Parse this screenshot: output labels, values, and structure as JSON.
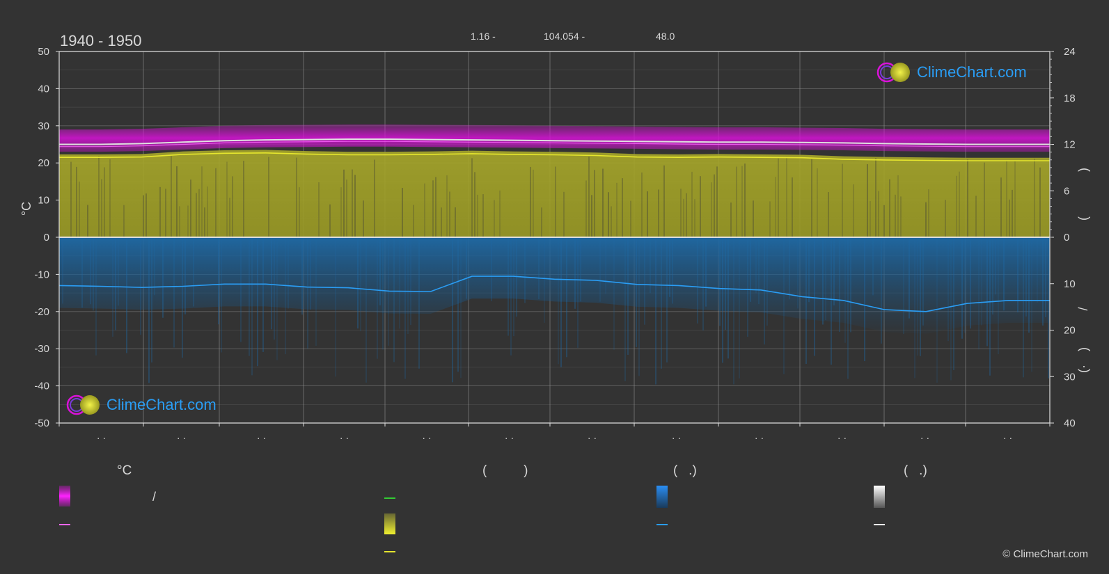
{
  "title": "1940 - 1950",
  "coords": {
    "lat": "1.16 -",
    "lon": "104.054 -",
    "elev": "48.0"
  },
  "brand": {
    "logo_text": "ClimeChart.com",
    "copyright": "© ClimeChart.com"
  },
  "legend": {
    "headers": [
      "°C",
      "(          )",
      "(   .)",
      "(   .)"
    ],
    "slash": "/"
  },
  "colors": {
    "background": "#333333",
    "temp_band": "#d912d9",
    "temp_mean": "#ff66ff",
    "sunshine_band": "#a8a82a",
    "sunshine_mean": "#e6e62e",
    "precip_band": "#1f6aa6",
    "precip_mean": "#2a9df4",
    "daylight_mean": "#dddddd",
    "green_line": "#33cc33",
    "logo_text": "#2a9df4"
  },
  "chart_data": {
    "type": "area",
    "title": "1940 - 1950",
    "ylabel": "°C",
    "ylim": [
      -50,
      50
    ],
    "yticks": [
      50,
      40,
      30,
      20,
      10,
      0,
      -10,
      -20,
      -30,
      -40,
      -50
    ],
    "y2_top_ticks": [
      24,
      18,
      12,
      6,
      0
    ],
    "y2_bottom_ticks": [
      10,
      20,
      30,
      40
    ],
    "x_tick_labels": [
      "· ·",
      "· ·",
      "· ·",
      "· ·",
      "· ·",
      "· ·",
      "· ·",
      "· ·",
      "· ·",
      "· ·",
      "· ·",
      "· ·"
    ],
    "right_axis_glyphs": [
      ")",
      "(",
      "/",
      ")",
      "(·"
    ],
    "grid": true,
    "x": [
      0.0,
      0.5,
      1.0,
      1.5,
      2.0,
      2.5,
      3.0,
      3.5,
      4.0,
      4.5,
      5.0,
      5.5,
      6.0,
      6.5,
      7.0,
      7.5,
      8.0,
      8.5,
      9.0,
      9.5,
      10.0,
      10.5,
      11.0,
      11.5,
      12.0
    ],
    "series": [
      {
        "values": [
          25.0,
          25.0,
          25.2,
          25.6,
          26.0,
          26.2,
          26.3,
          26.4,
          26.4,
          26.3,
          26.2,
          26.1,
          26.0,
          25.9,
          25.8,
          25.7,
          25.6,
          25.6,
          25.5,
          25.4,
          25.2,
          25.1,
          25.0,
          25.0,
          25.0
        ]
      },
      {
        "values": [
          21.5,
          21.5,
          21.6,
          22.3,
          22.6,
          22.7,
          22.4,
          22.2,
          22.2,
          22.3,
          22.5,
          22.3,
          22.2,
          22.0,
          21.6,
          21.5,
          21.6,
          21.5,
          21.4,
          21.0,
          20.8,
          20.7,
          20.6,
          20.6,
          20.6
        ]
      },
      {
        "values": [
          -13.0,
          -13.2,
          -13.5,
          -13.2,
          -12.6,
          -12.6,
          -13.4,
          -13.6,
          -14.5,
          -14.6,
          -10.5,
          -10.5,
          -11.3,
          -11.6,
          -12.7,
          -13.0,
          -13.8,
          -14.2,
          -16.0,
          -17.0,
          -19.5,
          -20.0,
          -17.8,
          -17.0,
          -17.0
        ]
      }
    ],
    "bands": {
      "temp_range": [
        23.0,
        29.0
      ],
      "sunshine_hours_fill": [
        0,
        22
      ],
      "precip_fill": [
        0,
        -13
      ]
    }
  }
}
